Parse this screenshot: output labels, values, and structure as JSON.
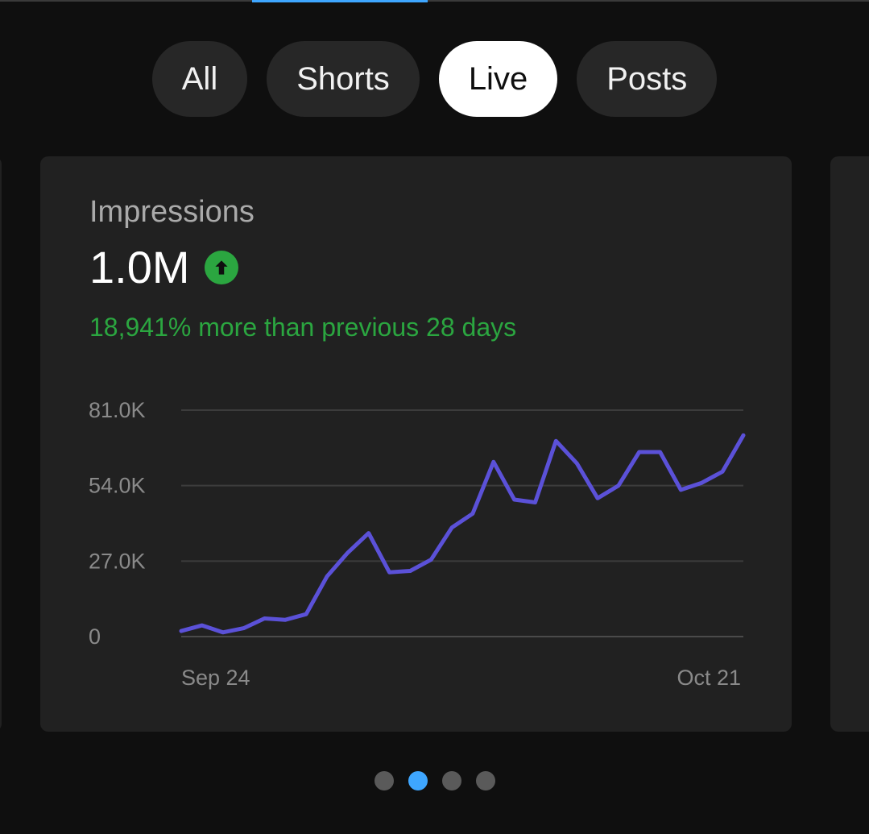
{
  "tabs": [
    {
      "label": "All",
      "active": false
    },
    {
      "label": "Shorts",
      "active": false
    },
    {
      "label": "Live",
      "active": true
    },
    {
      "label": "Posts",
      "active": false
    }
  ],
  "card": {
    "label": "Impressions",
    "value": "1.0M",
    "trend_icon": "arrow-up-icon",
    "comparison": "18,941% more than previous 28 days"
  },
  "colors": {
    "accent": "#3ea6ff",
    "positive": "#2ba640",
    "line": "#5b51d8"
  },
  "chart_data": {
    "type": "line",
    "x_start_label": "Sep 24",
    "x_end_label": "Oct 21",
    "y_ticks": [
      "81.0K",
      "54.0K",
      "27.0K",
      "0"
    ],
    "ylim": [
      0,
      81000
    ],
    "series": [
      {
        "values": [
          2000,
          4000,
          1500,
          3000,
          6500,
          6000,
          8000,
          21500,
          30000,
          37000,
          23000,
          23500,
          27500,
          39000,
          44000,
          62500,
          49000,
          48000,
          70000,
          62000,
          49500,
          54000,
          66000,
          66000,
          52500,
          55000,
          59000,
          72000
        ]
      }
    ]
  },
  "pagination": {
    "count": 4,
    "active_index": 1
  }
}
